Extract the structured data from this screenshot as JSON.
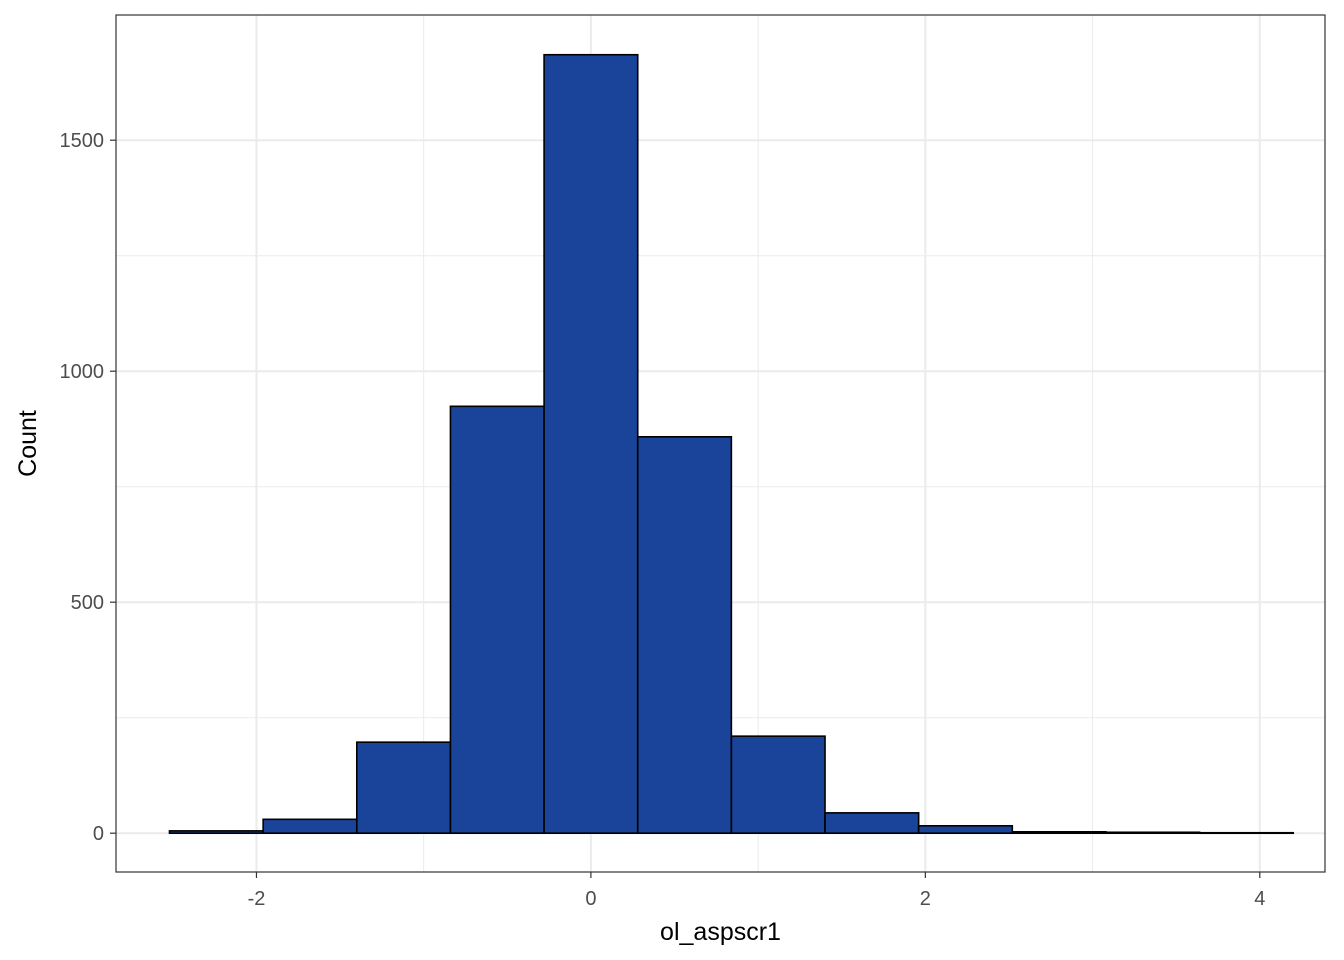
{
  "chart_data": {
    "type": "bar",
    "subtype": "histogram",
    "xlabel": "ol_aspscr1",
    "ylabel": "Count",
    "xlim": [
      -2.84,
      4.39
    ],
    "ylim": [
      -84,
      1771
    ],
    "x_ticks": [
      -2,
      0,
      2,
      4
    ],
    "x_tick_labels": [
      "-2",
      "0",
      "2",
      "4"
    ],
    "y_ticks": [
      0,
      500,
      1000,
      1500
    ],
    "y_tick_labels": [
      "0",
      "500",
      "1000",
      "1500"
    ],
    "y_minor_ticks": [
      250,
      750,
      1250
    ],
    "x_minor_ticks": [
      -1,
      1,
      3
    ],
    "grid": true,
    "bins": [
      {
        "x0": -2.52,
        "x1": -1.96,
        "count": 5
      },
      {
        "x0": -1.96,
        "x1": -1.4,
        "count": 30
      },
      {
        "x0": -1.4,
        "x1": -0.84,
        "count": 197
      },
      {
        "x0": -0.84,
        "x1": -0.28,
        "count": 924
      },
      {
        "x0": -0.28,
        "x1": 0.28,
        "count": 1685
      },
      {
        "x0": 0.28,
        "x1": 0.84,
        "count": 858
      },
      {
        "x0": 0.84,
        "x1": 1.4,
        "count": 210
      },
      {
        "x0": 1.4,
        "x1": 1.96,
        "count": 44
      },
      {
        "x0": 1.96,
        "x1": 2.52,
        "count": 16
      },
      {
        "x0": 2.52,
        "x1": 3.08,
        "count": 3
      },
      {
        "x0": 3.08,
        "x1": 3.64,
        "count": 2
      },
      {
        "x0": 3.64,
        "x1": 4.2,
        "count": 1
      }
    ],
    "fill_color": "#1A4499",
    "edge_color": "#000000",
    "background": "#FFFFFF",
    "grid_color": "#EBEBEB",
    "panel_border_color": "#333333"
  }
}
